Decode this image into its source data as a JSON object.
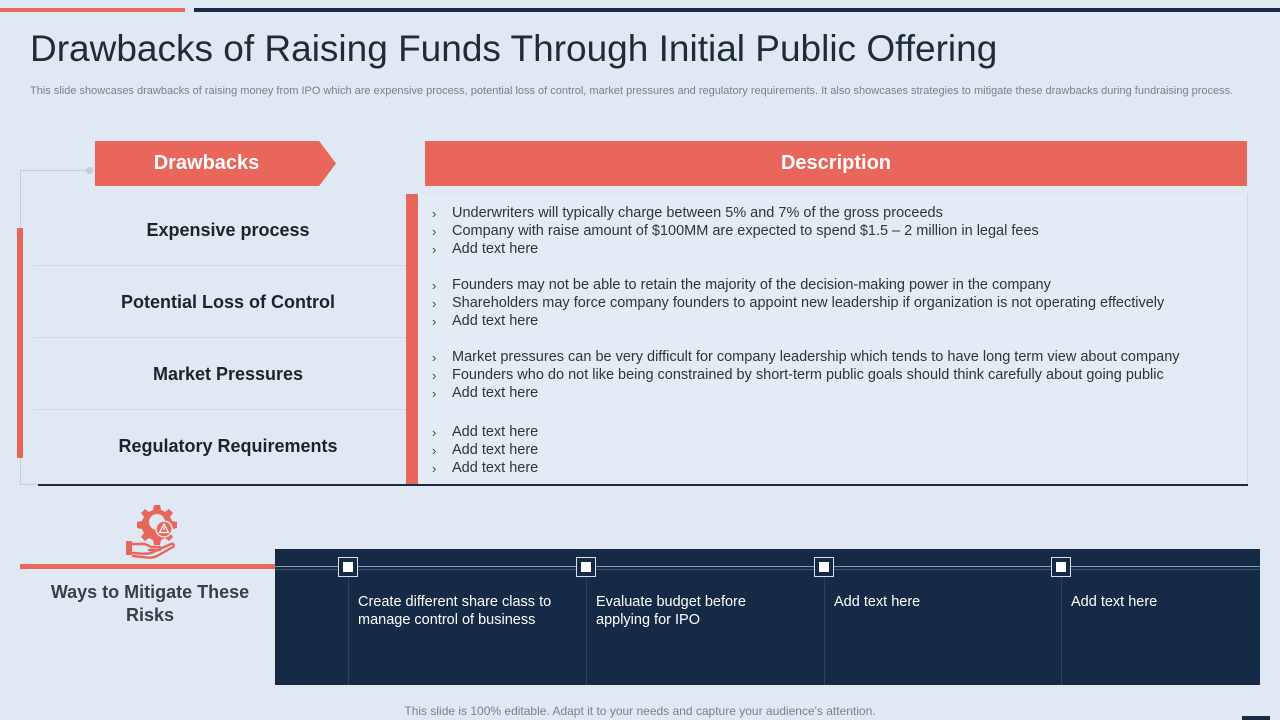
{
  "title": "Drawbacks of Raising Funds Through Initial Public Offering",
  "subtitle": "This slide showcases drawbacks of raising money from IPO which are expensive process, potential loss of control, market pressures and regulatory requirements. It also showcases strategies to mitigate these drawbacks during fundraising process.",
  "headers": {
    "drawbacks": "Drawbacks",
    "description": "Description"
  },
  "rows": [
    {
      "name": "Expensive process",
      "bullets": [
        "Underwriters will typically charge between 5% and 7% of the gross proceeds",
        "Company with raise amount of $100MM  are expected to spend $1.5 – 2 million in legal fees",
        "Add text here"
      ]
    },
    {
      "name": "Potential Loss of Control",
      "bullets": [
        "Founders may not be able to retain the majority of the decision-making power in the company",
        "Shareholders may force company founders to appoint new leadership if organization is not operating effectively",
        "Add text here"
      ]
    },
    {
      "name": "Market Pressures",
      "bullets": [
        "Market  pressures can be very difficult for company leadership which tends to have long term view about company",
        "Founders who do not like being constrained by short-term public goals should think carefully about going public",
        "Add text here"
      ]
    },
    {
      "name": "Regulatory Requirements",
      "bullets": [
        "Add text here",
        "Add text here",
        "Add text here"
      ]
    }
  ],
  "bullet_glyph": "›",
  "mitigate": {
    "title": "Ways to Mitigate These Risks",
    "icon": "gear-hand-warning-icon",
    "items": [
      "Create different share class to manage control of business",
      "Evaluate budget before applying for IPO",
      "Add text here",
      "Add text here"
    ]
  },
  "footer": "This slide is 100% editable. Adapt it to your needs and capture your audience's attention.",
  "colors": {
    "accent": "#e8665a",
    "navy": "#152a45",
    "background": "#dfe8f3"
  }
}
